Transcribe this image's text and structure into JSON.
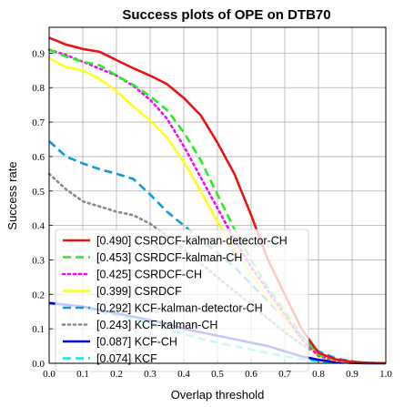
{
  "chart_data": {
    "type": "line",
    "title": "Success plots of OPE on DTB70",
    "xlabel": "Overlap threshold",
    "ylabel": "Success rate",
    "xlim": [
      0,
      1
    ],
    "ylim": [
      0,
      0.975
    ],
    "xticks": [
      "0.0",
      "0.1",
      "0.2",
      "0.3",
      "0.4",
      "0.5",
      "0.6",
      "0.7",
      "0.8",
      "0.9",
      "1.0"
    ],
    "yticks": [
      "0.0",
      "0.1",
      "0.2",
      "0.3",
      "0.4",
      "0.5",
      "0.6",
      "0.7",
      "0.8",
      "0.9"
    ],
    "grid": true,
    "legend_position": "lower-left",
    "x": [
      0,
      0.05,
      0.1,
      0.15,
      0.2,
      0.25,
      0.3,
      0.35,
      0.4,
      0.45,
      0.5,
      0.55,
      0.6,
      0.65,
      0.7,
      0.75,
      0.8,
      0.85,
      0.9,
      0.95,
      1.0
    ],
    "series": [
      {
        "name": "[0.490] CSRDCF-kalman-detector-CH",
        "color": "#ee1111",
        "dash": "solid",
        "values": [
          0.945,
          0.925,
          0.912,
          0.904,
          0.88,
          0.856,
          0.835,
          0.81,
          0.77,
          0.72,
          0.64,
          0.55,
          0.43,
          0.3,
          0.2,
          0.1,
          0.03,
          0.012,
          0.004,
          0.001,
          0.0
        ]
      },
      {
        "name": "[0.453] CSRDCF-kalman-CH",
        "color": "#22ee22",
        "dash": "dashed",
        "values": [
          0.91,
          0.89,
          0.875,
          0.865,
          0.835,
          0.808,
          0.775,
          0.735,
          0.67,
          0.59,
          0.49,
          0.39,
          0.3,
          0.22,
          0.15,
          0.08,
          0.025,
          0.01,
          0.003,
          0.001,
          0.0
        ]
      },
      {
        "name": "[0.425] CSRDCF-CH",
        "color": "#ff00ff",
        "dash": "dotted",
        "values": [
          0.91,
          0.895,
          0.875,
          0.855,
          0.835,
          0.805,
          0.765,
          0.71,
          0.63,
          0.54,
          0.45,
          0.36,
          0.28,
          0.21,
          0.14,
          0.07,
          0.022,
          0.008,
          0.003,
          0.001,
          0.0
        ]
      },
      {
        "name": "[0.399] CSRDCF",
        "color": "#ffff22",
        "dash": "solid",
        "values": [
          0.885,
          0.86,
          0.85,
          0.825,
          0.79,
          0.745,
          0.705,
          0.655,
          0.585,
          0.5,
          0.41,
          0.33,
          0.26,
          0.19,
          0.13,
          0.07,
          0.02,
          0.008,
          0.003,
          0.001,
          0.0
        ]
      },
      {
        "name": "[0.292] KCF-kalman-detector-CH",
        "color": "#1199dd",
        "dash": "dashed",
        "values": [
          0.645,
          0.6,
          0.58,
          0.563,
          0.55,
          0.535,
          0.49,
          0.44,
          0.4,
          0.36,
          0.32,
          0.28,
          0.23,
          0.18,
          0.13,
          0.08,
          0.035,
          0.015,
          0.005,
          0.001,
          0.0
        ]
      },
      {
        "name": "[0.243] KCF-kalman-CH",
        "color": "#888888",
        "dash": "dotted",
        "values": [
          0.55,
          0.505,
          0.47,
          0.455,
          0.44,
          0.43,
          0.405,
          0.37,
          0.33,
          0.29,
          0.25,
          0.21,
          0.17,
          0.13,
          0.09,
          0.055,
          0.025,
          0.01,
          0.004,
          0.001,
          0.0
        ]
      },
      {
        "name": "[0.087] KCF-CH",
        "color": "#0000dd",
        "dash": "solid",
        "values": [
          0.175,
          0.17,
          0.165,
          0.155,
          0.145,
          0.135,
          0.125,
          0.115,
          0.1,
          0.09,
          0.08,
          0.07,
          0.06,
          0.05,
          0.035,
          0.02,
          0.01,
          0.004,
          0.001,
          0.0,
          0.0
        ]
      },
      {
        "name": "[0.074] KCF",
        "color": "#00eeee",
        "dash": "dashed",
        "values": [
          0.175,
          0.168,
          0.16,
          0.15,
          0.14,
          0.128,
          0.115,
          0.1,
          0.085,
          0.072,
          0.06,
          0.05,
          0.04,
          0.03,
          0.02,
          0.012,
          0.006,
          0.002,
          0.001,
          0.0,
          0.0
        ]
      }
    ]
  }
}
